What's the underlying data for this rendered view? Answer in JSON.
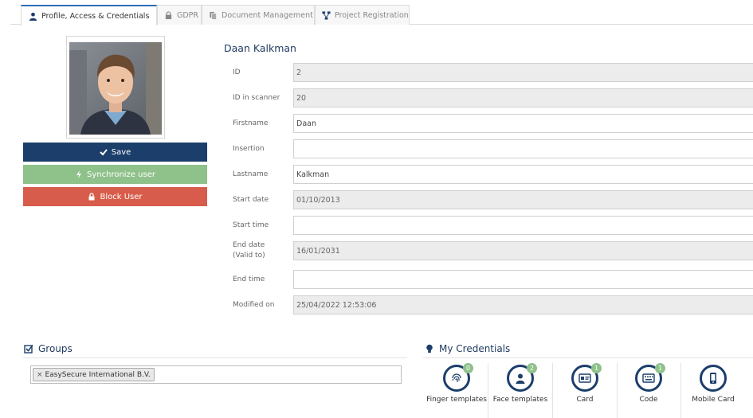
{
  "tabs": [
    {
      "label": "Profile, Access & Credentials",
      "icon": "user-icon",
      "active": true
    },
    {
      "label": "GDPR",
      "icon": "gdpr-icon",
      "active": false
    },
    {
      "label": "Document Management",
      "icon": "documents-icon",
      "active": false
    },
    {
      "label": "Project Registration",
      "icon": "sitemap-icon",
      "active": false
    }
  ],
  "actions": {
    "save": "Save",
    "sync": "Synchronize user",
    "block": "Block User"
  },
  "person": {
    "name": "Daan Kalkman"
  },
  "fields": [
    {
      "label": "ID",
      "value": "2",
      "readonly": true
    },
    {
      "label": "ID in scanner",
      "value": "20",
      "readonly": true
    },
    {
      "label": "Firstname",
      "value": "Daan",
      "readonly": false
    },
    {
      "label": "Insertion",
      "value": "",
      "readonly": false
    },
    {
      "label": "Lastname",
      "value": "Kalkman",
      "readonly": false
    },
    {
      "label": "Start date",
      "value": "01/10/2013",
      "readonly": true
    },
    {
      "label": "Start time",
      "value": "",
      "readonly": false
    },
    {
      "label": "End date\n(Valid to)",
      "value": "16/01/2031",
      "readonly": true
    },
    {
      "label": "End time",
      "value": "",
      "readonly": false
    },
    {
      "label": "Modified on",
      "value": "25/04/2022 12:53:06",
      "readonly": true
    }
  ],
  "groups": {
    "title": "Groups",
    "items": [
      "EasySecure International B.V."
    ]
  },
  "credentials": {
    "title": "My Credentials",
    "items": [
      {
        "label": "Finger templates",
        "badge": "0",
        "icon": "fingerprint-icon"
      },
      {
        "label": "Face templates",
        "badge": "2",
        "icon": "face-icon"
      },
      {
        "label": "Card",
        "badge": "1",
        "icon": "card-icon"
      },
      {
        "label": "Code",
        "badge": "1",
        "icon": "keypad-icon"
      },
      {
        "label": "Mobile Card",
        "badge": "",
        "icon": "mobile-icon"
      }
    ]
  },
  "colors": {
    "primary": "#1c3e6b",
    "success": "#8fc18a",
    "danger": "#d85c4b",
    "tab_accent": "#2c6db5"
  }
}
